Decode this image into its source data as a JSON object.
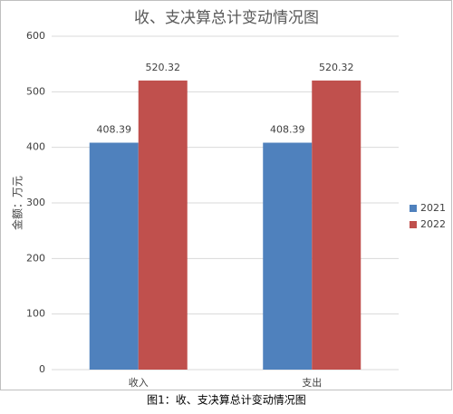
{
  "chart_data": {
    "type": "bar",
    "title": "收、支决算总计变动情况图",
    "y_label": "金额：万元",
    "caption": "图1：收、支决算总计变动情况图",
    "categories": [
      "收入",
      "支出"
    ],
    "series": [
      {
        "name": "2021",
        "color": "#4f81bd",
        "values": [
          408.39,
          408.39
        ]
      },
      {
        "name": "2022",
        "color": "#c0504d",
        "values": [
          520.32,
          520.32
        ]
      }
    ],
    "ylim": [
      0,
      600
    ],
    "yticks": [
      0,
      100,
      200,
      300,
      400,
      500,
      600
    ],
    "grid": true,
    "legend": "right",
    "data_labels": true
  }
}
